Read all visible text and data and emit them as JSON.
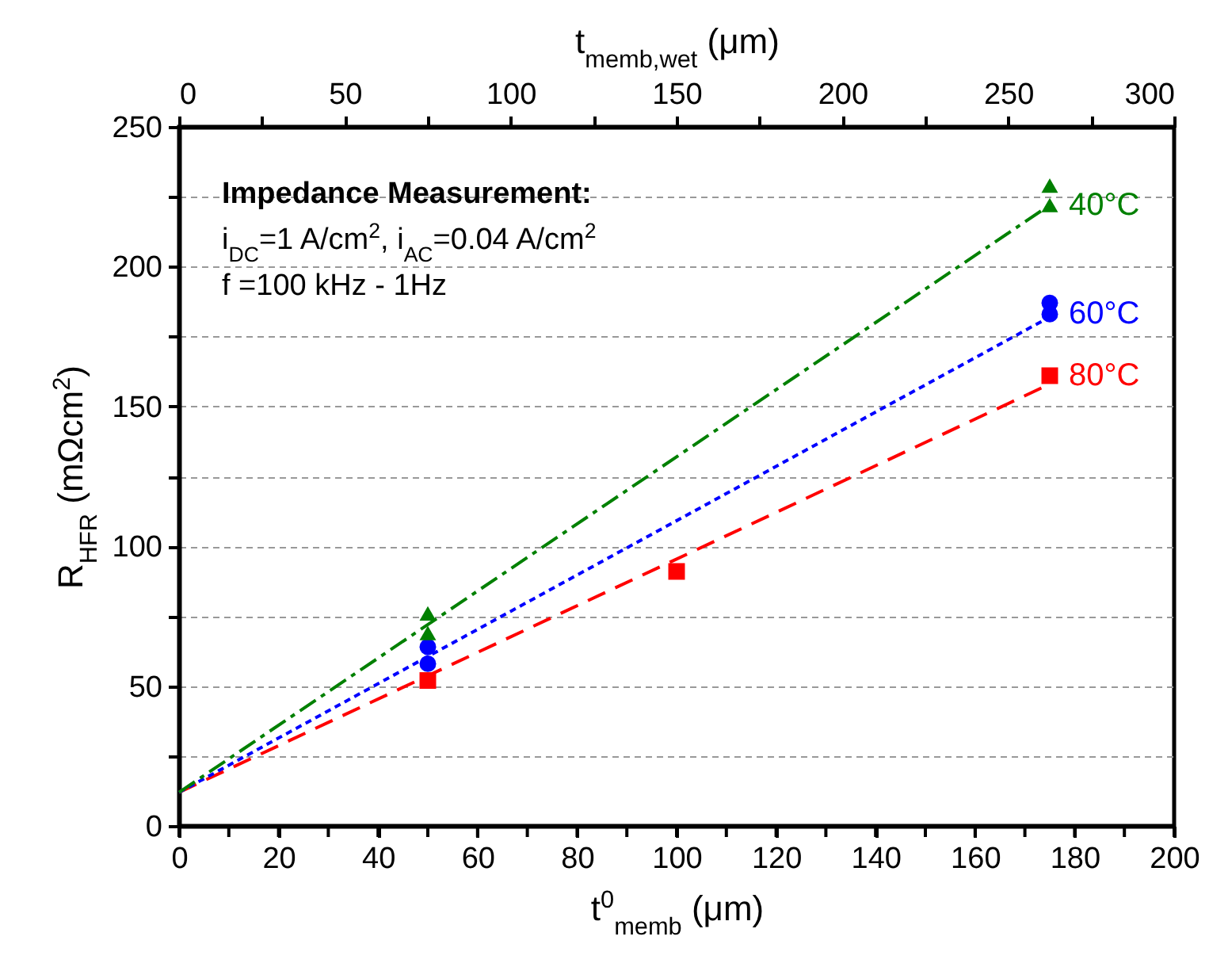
{
  "chart_data": {
    "type": "scatter",
    "xlabel": "t$^{0}$$_{memb}$ (μm)",
    "ylabel": "R$_{HFR}$ (mΩcm$^{2}$)",
    "x2label": "t$_{memb,wet}$ (μm)",
    "annotations": [
      "Impedance Measurement:",
      "i$_{DC}$=1 A/cm$^{2}$, i$_{AC}$=0.04 A/cm$^{2}$",
      "f =100 kHz - 1Hz"
    ],
    "xlim": [
      0,
      200
    ],
    "xticks": [
      0,
      {
        "value": 10,
        "label": null
      },
      20,
      {
        "value": 30,
        "label": null
      },
      40,
      {
        "value": 50,
        "label": null
      },
      60,
      {
        "value": 70,
        "label": null
      },
      80,
      {
        "value": 90,
        "label": null
      },
      100,
      {
        "value": 110,
        "label": null
      },
      120,
      {
        "value": 130,
        "label": null
      },
      140,
      {
        "value": 150,
        "label": null
      },
      160,
      {
        "value": 170,
        "label": null
      },
      180,
      {
        "value": 190,
        "label": null
      },
      200
    ],
    "x2lim": [
      0,
      300
    ],
    "x2ticks": [
      0,
      {
        "value": 25,
        "label": null
      },
      50,
      {
        "value": 75,
        "label": null
      },
      100,
      {
        "value": 125,
        "label": null
      },
      150,
      {
        "value": 175,
        "label": null
      },
      200,
      {
        "value": 225,
        "label": null
      },
      250,
      {
        "value": 275,
        "label": null
      },
      300
    ],
    "ylim": [
      0,
      250
    ],
    "yticks": [
      0,
      {
        "value": 25,
        "label": null
      },
      50,
      {
        "value": 75,
        "label": null
      },
      100,
      {
        "value": 125,
        "label": null
      },
      150,
      {
        "value": 175,
        "label": null
      },
      200,
      {
        "value": 225,
        "label": null
      },
      250
    ],
    "grid": "y",
    "series": [
      {
        "name": "40°C",
        "type": "scatter",
        "color": "#008000",
        "marker": "triangle",
        "x": [
          50,
          50,
          175,
          175
        ],
        "values": [
          76,
          69,
          229,
          222
        ]
      },
      {
        "name": "60°C",
        "type": "scatter",
        "color": "#0000ff",
        "marker": "circle",
        "x": [
          50,
          50,
          175,
          175
        ],
        "values": [
          64,
          58,
          187,
          183
        ]
      },
      {
        "name": "80°C",
        "type": "scatter",
        "color": "#ff0000",
        "marker": "square",
        "x": [
          50,
          100,
          175
        ],
        "values": [
          52,
          91,
          161
        ]
      },
      {
        "type": "line",
        "color": "#008000",
        "line_style": "dashdot",
        "marker": "none",
        "x": [
          0,
          175
        ],
        "values": [
          12,
          222
        ]
      },
      {
        "type": "line",
        "color": "#0000ff",
        "line_style": "dotted",
        "marker": "none",
        "x": [
          0,
          175
        ],
        "values": [
          12,
          182
        ]
      },
      {
        "type": "line",
        "color": "#ff0000",
        "line_style": "dashed",
        "marker": "none",
        "x": [
          0,
          175
        ],
        "values": [
          12,
          158
        ]
      }
    ]
  }
}
